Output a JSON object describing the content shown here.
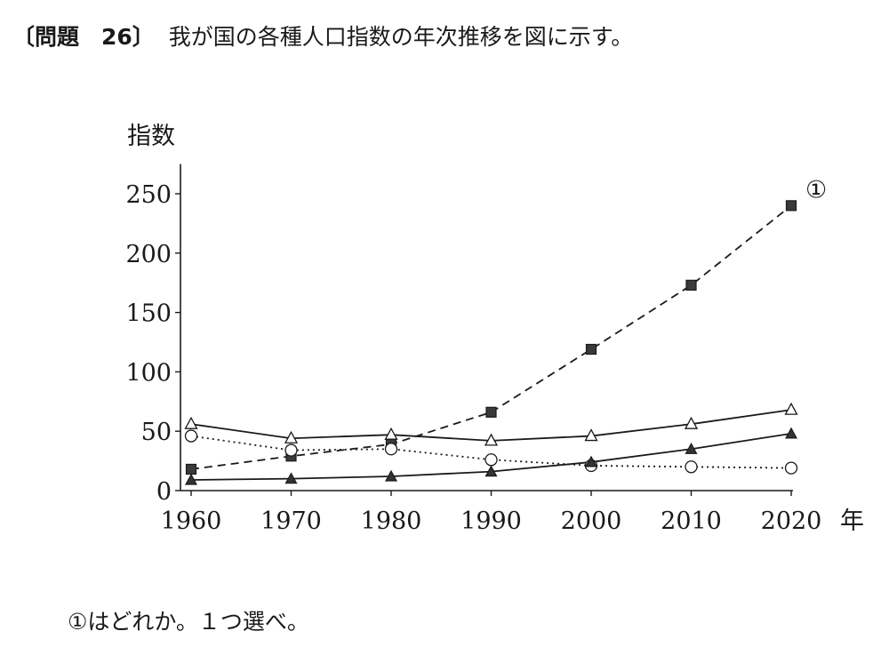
{
  "question": {
    "label": "〔問題　26〕",
    "stem": "我が国の各種人口指数の年次推移を図に示す。",
    "prompt": "①はどれか。１つ選べ。"
  },
  "chart_data": {
    "type": "line",
    "ylabel": "指数",
    "xlabel": "年",
    "x": [
      1960,
      1970,
      1980,
      1990,
      2000,
      2010,
      2020
    ],
    "ylim": [
      0,
      275
    ],
    "yticks": [
      0,
      50,
      100,
      150,
      200,
      250
    ],
    "grid": false,
    "series": [
      {
        "name": "①",
        "marker": "filled-square",
        "line": "dashed",
        "values": [
          18,
          29,
          39,
          66,
          119,
          173,
          240
        ]
      },
      {
        "marker": "open-triangle",
        "line": "solid",
        "values": [
          56,
          44,
          47,
          42,
          46,
          56,
          68
        ]
      },
      {
        "marker": "open-circle",
        "line": "dotted",
        "values": [
          46,
          34,
          35,
          26,
          21,
          20,
          19
        ]
      },
      {
        "marker": "filled-triangle",
        "line": "solid",
        "values": [
          9,
          10,
          12,
          16,
          24,
          35,
          48
        ]
      }
    ]
  }
}
